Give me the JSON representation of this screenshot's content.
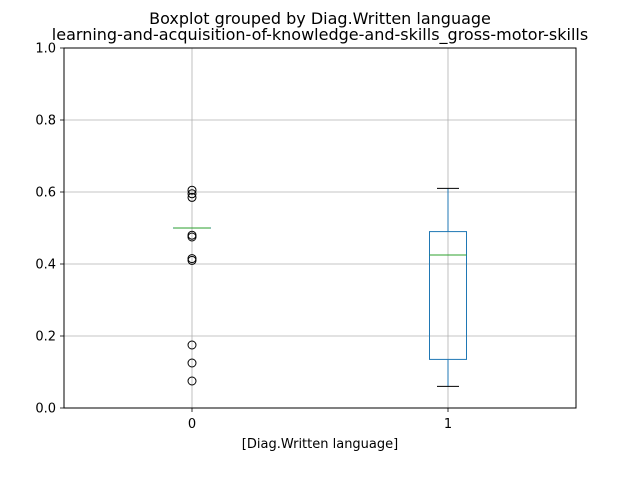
{
  "chart_data": {
    "type": "boxplot",
    "title": "Boxplot grouped by Diag.Written language",
    "subtitle": "learning-and-acquisition-of-knowledge-and-skills_gross-motor-skills",
    "xlabel": "[Diag.Written language]",
    "ylabel": "",
    "categories": [
      "0",
      "1"
    ],
    "ylim": [
      0,
      1
    ],
    "yticks": [
      "0.0",
      "0.2",
      "0.4",
      "0.6",
      "0.8",
      "1.0"
    ],
    "grid": true,
    "boxes": [
      {
        "category": "0",
        "whisker_low": 0.5,
        "q1": 0.5,
        "median": 0.5,
        "q3": 0.5,
        "whisker_high": 0.5,
        "outliers": [
          0.605,
          0.595,
          0.585,
          0.48,
          0.475,
          0.415,
          0.41,
          0.175,
          0.125,
          0.075
        ]
      },
      {
        "category": "1",
        "whisker_low": 0.06,
        "q1": 0.135,
        "median": 0.425,
        "q3": 0.49,
        "whisker_high": 0.61,
        "outliers": []
      }
    ],
    "colors": {
      "box": "#1f77b4",
      "median": "#2ca02c",
      "whisker": "#000000",
      "grid": "#b0b0b0"
    }
  }
}
